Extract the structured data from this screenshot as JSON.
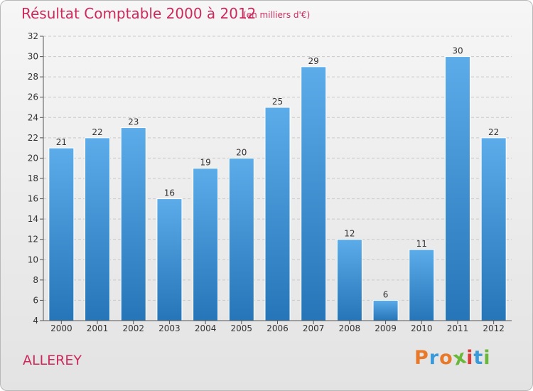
{
  "title": "Résultat Comptable 2000 à 2012",
  "subtitle": "(en milliers d'€)",
  "commune": "ALLEREY",
  "logo": {
    "text": "Proxiti",
    "colors": [
      "#e8792a",
      "#3a9ad9",
      "#e8792a",
      "#6ab83a",
      "#d93b3b",
      "#3a9ad9",
      "#6ab83a"
    ]
  },
  "colors": {
    "bar_top": "#5cacea",
    "bar_bottom": "#2575b8",
    "grid": "#c9c9c9",
    "axis": "#555555",
    "text": "#333333"
  },
  "chart_data": {
    "type": "bar",
    "title": "Résultat Comptable 2000 à 2012",
    "subtitle": "(en milliers d'€)",
    "xlabel": "",
    "ylabel": "",
    "categories": [
      "2000",
      "2001",
      "2002",
      "2003",
      "2004",
      "2005",
      "2006",
      "2007",
      "2008",
      "2009",
      "2010",
      "2011",
      "2012"
    ],
    "values": [
      21,
      22,
      23,
      16,
      19,
      20,
      25,
      29,
      12,
      6,
      11,
      30,
      22
    ],
    "ylim": [
      4,
      32
    ],
    "yticks": [
      4,
      6,
      8,
      10,
      12,
      14,
      16,
      18,
      20,
      22,
      24,
      26,
      28,
      30,
      32
    ],
    "grid": true
  }
}
